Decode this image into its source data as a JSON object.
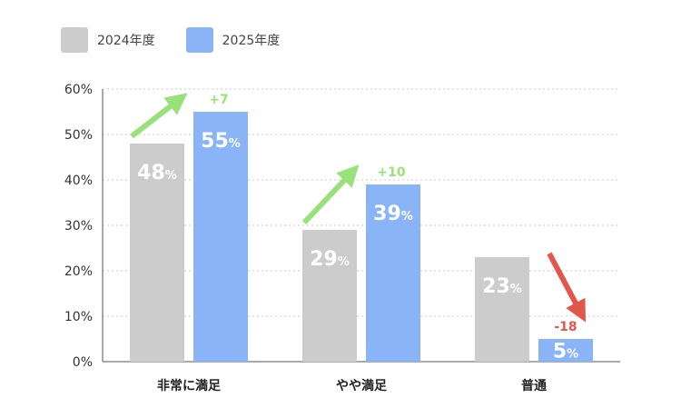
{
  "chart_data": {
    "type": "bar",
    "categories": [
      "非常に満足",
      "やや満足",
      "普通"
    ],
    "series": [
      {
        "name": "2024年度",
        "values": [
          48,
          29,
          23
        ],
        "color": "#cccccc"
      },
      {
        "name": "2025年度",
        "values": [
          55,
          39,
          5
        ],
        "color": "#8ab4f8"
      }
    ],
    "value_suffix": "%",
    "ylim": [
      0,
      60
    ],
    "yticks": [
      0,
      10,
      20,
      30,
      40,
      50,
      60
    ],
    "ytick_labels": [
      "0%",
      "10%",
      "20%",
      "30%",
      "40%",
      "50%",
      "60%"
    ],
    "grid": true,
    "legend_position": "top-left",
    "annotations": [
      {
        "category": "非常に満足",
        "text": "+7",
        "direction": "up",
        "color": "#99e27a"
      },
      {
        "category": "やや満足",
        "text": "+10",
        "direction": "up",
        "color": "#99e27a"
      },
      {
        "category": "普通",
        "text": "-18",
        "direction": "down",
        "color": "#e2574c"
      }
    ]
  }
}
